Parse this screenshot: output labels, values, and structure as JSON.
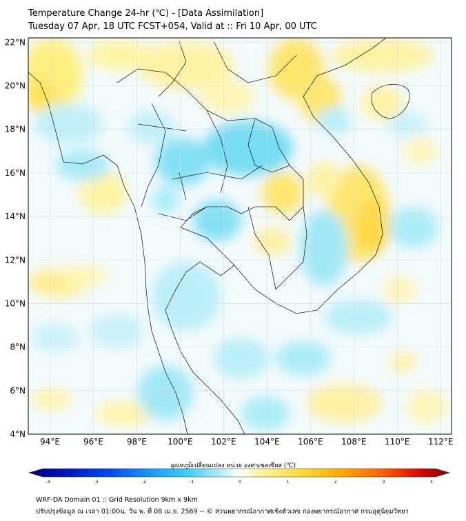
{
  "title": {
    "line1": "Temperature Change 24-hr (℃) - [Data Assimilation]",
    "line2": "Tuesday 07 Apr, 18 UTC FCST+054, Valid at :: Fri 10 Apr, 00 UTC"
  },
  "axes": {
    "lat_labels": [
      "22°N",
      "20°N",
      "18°N",
      "16°N",
      "14°N",
      "12°N",
      "10°N",
      "8°N",
      "6°N",
      "4°N"
    ],
    "lat_values": [
      22,
      20,
      18,
      16,
      14,
      12,
      10,
      8,
      6,
      4
    ],
    "lon_labels": [
      "94°E",
      "96°E",
      "98°E",
      "100°E",
      "102°E",
      "104°E",
      "106°E",
      "108°E",
      "110°E",
      "112°E"
    ],
    "lon_values": [
      94,
      96,
      98,
      100,
      102,
      104,
      106,
      108,
      110,
      112
    ],
    "lon_range": [
      93,
      112.5
    ],
    "lat_range": [
      4,
      22.2
    ]
  },
  "colorbar": {
    "title": "อุณหภูมิเปลี่ยนแปลง หน่วย องศาเซลเซียส (℃)",
    "tick_labels": [
      "-4",
      "-3",
      "-2",
      "-1",
      "0",
      "1",
      "2",
      "3",
      "4"
    ],
    "tick_values": [
      -4,
      -3,
      -2,
      -1,
      0,
      1,
      2,
      3,
      4
    ],
    "colors": [
      "#00007a",
      "#0018c8",
      "#0050f0",
      "#1ea0ff",
      "#40d0f0",
      "#a8ecf8",
      "#ffffff",
      "#fff4a0",
      "#ffe040",
      "#ffb000",
      "#ff6a00",
      "#e01000",
      "#800000"
    ]
  },
  "footer": {
    "line1": "WRF-DA Domain 01 :: Grid Resolution 9km x 9km",
    "line2": "ปรับปรุงข้อมูล ณ เวลา 01:00น. วัน พ. ที่ 08 เม.ย. 2569 -- © ส่วนพยากรณ์อากาศเชิงตัวเลข กองพยากรณ์อากาศ กรมอุตุนิยมวิทยา"
  }
}
